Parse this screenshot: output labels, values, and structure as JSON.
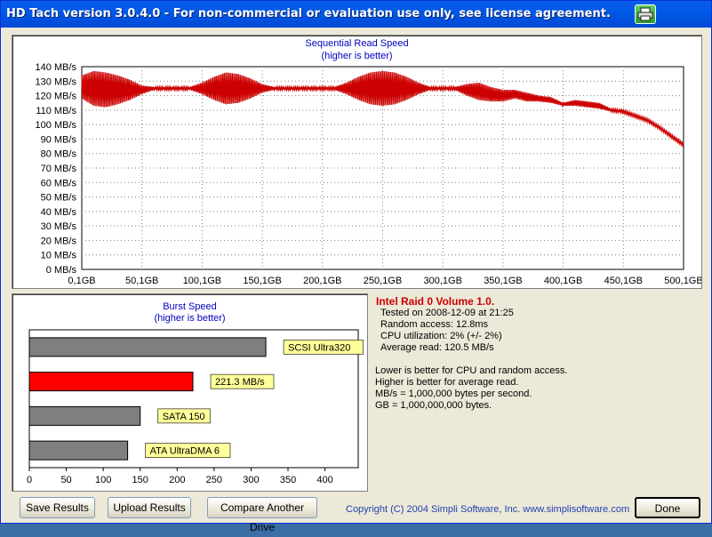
{
  "window": {
    "title": "HD Tach version 3.0.4.0  - For non-commercial or evaluation use only, see license agreement."
  },
  "icons": {
    "print": "printer-icon"
  },
  "colors": {
    "read_line": "#cc0000",
    "bar_gray": "#7f7f7f",
    "bar_red": "#ff0000",
    "label_bg": "#ffff99",
    "title_blue": "#0000c0"
  },
  "read_chart": {
    "title": "Sequential Read Speed",
    "subtitle": "(higher is better)"
  },
  "burst_chart": {
    "title": "Burst Speed",
    "subtitle": "(higher is better)"
  },
  "chart_data": [
    {
      "type": "line",
      "title": "Sequential Read Speed",
      "subtitle": "(higher is better)",
      "xlabel": "",
      "ylabel": "",
      "x_ticks": [
        "0,1GB",
        "50,1GB",
        "100,1GB",
        "150,1GB",
        "200,1GB",
        "250,1GB",
        "300,1GB",
        "350,1GB",
        "400,1GB",
        "450,1GB",
        "500,1GB"
      ],
      "y_ticks": [
        "0 MB/s",
        "10 MB/s",
        "20 MB/s",
        "30 MB/s",
        "40 MB/s",
        "50 MB/s",
        "60 MB/s",
        "70 MB/s",
        "80 MB/s",
        "90 MB/s",
        "100 MB/s",
        "110 MB/s",
        "120 MB/s",
        "130 MB/s",
        "140 MB/s"
      ],
      "xlim": [
        0.1,
        500.1
      ],
      "ylim": [
        0,
        140
      ],
      "grid": true,
      "series": [
        {
          "x": [
            0.1,
            10,
            20,
            30,
            40,
            50,
            60,
            70,
            80,
            90,
            100,
            110,
            120,
            130,
            140,
            150,
            160,
            170,
            180,
            190,
            200,
            210,
            220,
            230,
            240,
            250,
            260,
            270,
            280,
            290,
            300,
            310,
            320,
            330,
            340,
            350,
            360,
            370,
            380,
            390,
            400,
            410,
            420,
            430,
            440,
            450,
            460,
            470,
            480,
            490,
            500.1
          ],
          "y": [
            126,
            125,
            124,
            124,
            124,
            124,
            125,
            125,
            125,
            125,
            125,
            125,
            125,
            125,
            125,
            125,
            125,
            125,
            125,
            125,
            125,
            125,
            125,
            125,
            125,
            125,
            125,
            125,
            125,
            125,
            125,
            125,
            124,
            123,
            121,
            120,
            121,
            119,
            118,
            117,
            114,
            115,
            114,
            113,
            110,
            109,
            106,
            103,
            98,
            92,
            86
          ],
          "amplitude": [
            8,
            12,
            12,
            10,
            7,
            3,
            1,
            1,
            1,
            1,
            4,
            8,
            11,
            10,
            7,
            3,
            1,
            1,
            1,
            1,
            1,
            1,
            4,
            8,
            11,
            12,
            11,
            8,
            4,
            1,
            1,
            1,
            4,
            6,
            5,
            4,
            3,
            3,
            2,
            2,
            1,
            2,
            2,
            2,
            1,
            1,
            1,
            1,
            1,
            1,
            1
          ]
        }
      ]
    },
    {
      "type": "bar",
      "orientation": "horizontal",
      "title": "Burst Speed",
      "subtitle": "(higher is better)",
      "categories": [
        "SCSI Ultra320",
        "221.3 MB/s",
        "SATA 150",
        "ATA UltraDMA 6"
      ],
      "values": [
        320,
        221.3,
        150,
        133
      ],
      "highlight_index": 1,
      "x_ticks": [
        "0",
        "50",
        "100",
        "150",
        "200",
        "250",
        "300",
        "350",
        "400"
      ],
      "xlim": [
        0,
        445
      ],
      "grid": false
    }
  ],
  "info": {
    "heading": "Intel Raid 0 Volume 1.0.",
    "tested": "Tested on 2008-12-09 at 21:25",
    "random_access": "Random access: 12.8ms",
    "cpu": "CPU utilization: 2% (+/- 2%)",
    "avg_read": "Average read: 120.5 MB/s",
    "note1": "Lower is better for CPU and random access.",
    "note2": "Higher is better for average read.",
    "note3": "MB/s = 1,000,000 bytes per second.",
    "note4": "GB = 1,000,000,000 bytes."
  },
  "buttons": {
    "save": "Save Results",
    "upload": "Upload Results",
    "compare": "Compare Another Drive",
    "done": "Done"
  },
  "copyright": "Copyright (C) 2004 Simpli Software, Inc. www.simplisoftware.com"
}
